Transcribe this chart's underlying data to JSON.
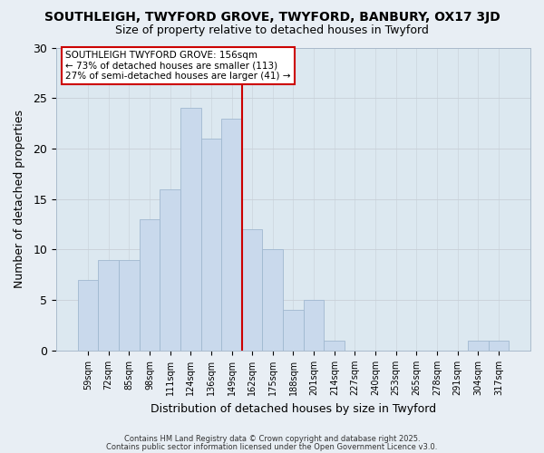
{
  "title": "SOUTHLEIGH, TWYFORD GROVE, TWYFORD, BANBURY, OX17 3JD",
  "subtitle": "Size of property relative to detached houses in Twyford",
  "xlabel": "Distribution of detached houses by size in Twyford",
  "ylabel": "Number of detached properties",
  "bar_labels": [
    "59sqm",
    "72sqm",
    "85sqm",
    "98sqm",
    "111sqm",
    "124sqm",
    "136sqm",
    "149sqm",
    "162sqm",
    "175sqm",
    "188sqm",
    "201sqm",
    "214sqm",
    "227sqm",
    "240sqm",
    "253sqm",
    "265sqm",
    "278sqm",
    "291sqm",
    "304sqm",
    "317sqm"
  ],
  "bar_values": [
    7,
    9,
    9,
    13,
    16,
    24,
    21,
    23,
    12,
    10,
    4,
    5,
    1,
    0,
    0,
    0,
    0,
    0,
    0,
    1,
    1
  ],
  "bar_color": "#c9d9ec",
  "bar_edge_color": "#a0b8d0",
  "vline_color": "#cc0000",
  "annotation_title": "SOUTHLEIGH TWYFORD GROVE: 156sqm",
  "annotation_line1": "← 73% of detached houses are smaller (113)",
  "annotation_line2": "27% of semi-detached houses are larger (41) →",
  "annotation_box_fill": "#ffffff",
  "annotation_box_edge": "#cc0000",
  "ylim": [
    0,
    30
  ],
  "yticks": [
    0,
    5,
    10,
    15,
    20,
    25,
    30
  ],
  "footer1": "Contains HM Land Registry data © Crown copyright and database right 2025.",
  "footer2": "Contains public sector information licensed under the Open Government Licence v3.0.",
  "bg_color": "#e8eef4",
  "plot_bg_color": "#dce8f0"
}
